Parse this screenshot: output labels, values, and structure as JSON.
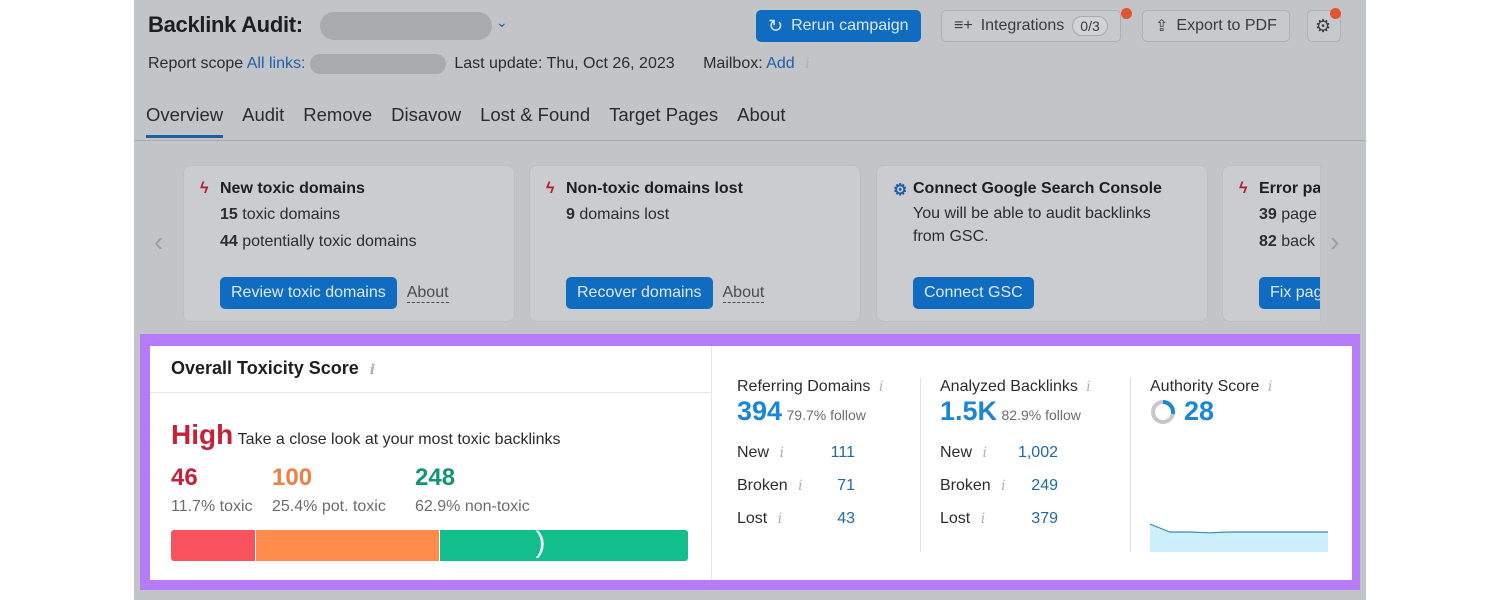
{
  "header": {
    "title": "Backlink Audit:",
    "rerun": "Rerun campaign",
    "integrations": "Integrations",
    "integrations_count": "0/3",
    "export": "Export to PDF",
    "scope_label": "Report scope",
    "scope_link": "All links:",
    "last_update": "Last update: Thu, Oct 26, 2023",
    "mailbox_label": "Mailbox:",
    "mailbox_link": "Add"
  },
  "tabs": [
    "Overview",
    "Audit",
    "Remove",
    "Disavow",
    "Lost & Found",
    "Target Pages",
    "About"
  ],
  "cards": [
    {
      "title": "New toxic domains",
      "lines": [
        [
          "15",
          "toxic domains"
        ],
        [
          "44",
          "potentially toxic domains"
        ]
      ],
      "button": "Review toxic domains",
      "about": "About"
    },
    {
      "title": "Non-toxic domains lost",
      "lines": [
        [
          "9",
          "domains lost"
        ]
      ],
      "button": "Recover domains",
      "about": "About"
    },
    {
      "title": "Connect Google Search Console",
      "text": "You will be able to audit backlinks from GSC.",
      "button": "Connect GSC"
    },
    {
      "title": "Error pa",
      "lines": [
        [
          "39",
          "page"
        ],
        [
          "82",
          "back"
        ]
      ],
      "button": "Fix pag"
    }
  ],
  "toxicity": {
    "title": "Overall Toxicity Score",
    "level": "High",
    "message": "Take a close look at your most toxic backlinks",
    "stats": [
      {
        "value": "46",
        "label": "11.7% toxic",
        "color": "#c4213a",
        "pct": 11.7,
        "bar": "#f7525e"
      },
      {
        "value": "100",
        "label": "25.4% pot. toxic",
        "color": "#ee7f45",
        "pct": 25.4,
        "bar": "#ff8c4c"
      },
      {
        "value": "248",
        "label": "62.9% non-toxic",
        "color": "#139477",
        "pct": 62.9,
        "bar": "#12be8b"
      }
    ]
  },
  "referring": {
    "title": "Referring Domains",
    "value": "394",
    "follow": "79.7% follow",
    "rows": [
      [
        "New",
        "111"
      ],
      [
        "Broken",
        "71"
      ],
      [
        "Lost",
        "43"
      ]
    ]
  },
  "backlinks": {
    "title": "Analyzed Backlinks",
    "value": "1.5K",
    "follow": "82.9% follow",
    "rows": [
      [
        "New",
        "1,002"
      ],
      [
        "Broken",
        "249"
      ],
      [
        "Lost",
        "379"
      ]
    ]
  },
  "authority": {
    "title": "Authority Score",
    "value": "28",
    "trend": [
      30,
      28,
      28,
      27.8,
      28,
      28,
      28,
      28,
      28,
      28
    ]
  },
  "info_glyph": "i"
}
